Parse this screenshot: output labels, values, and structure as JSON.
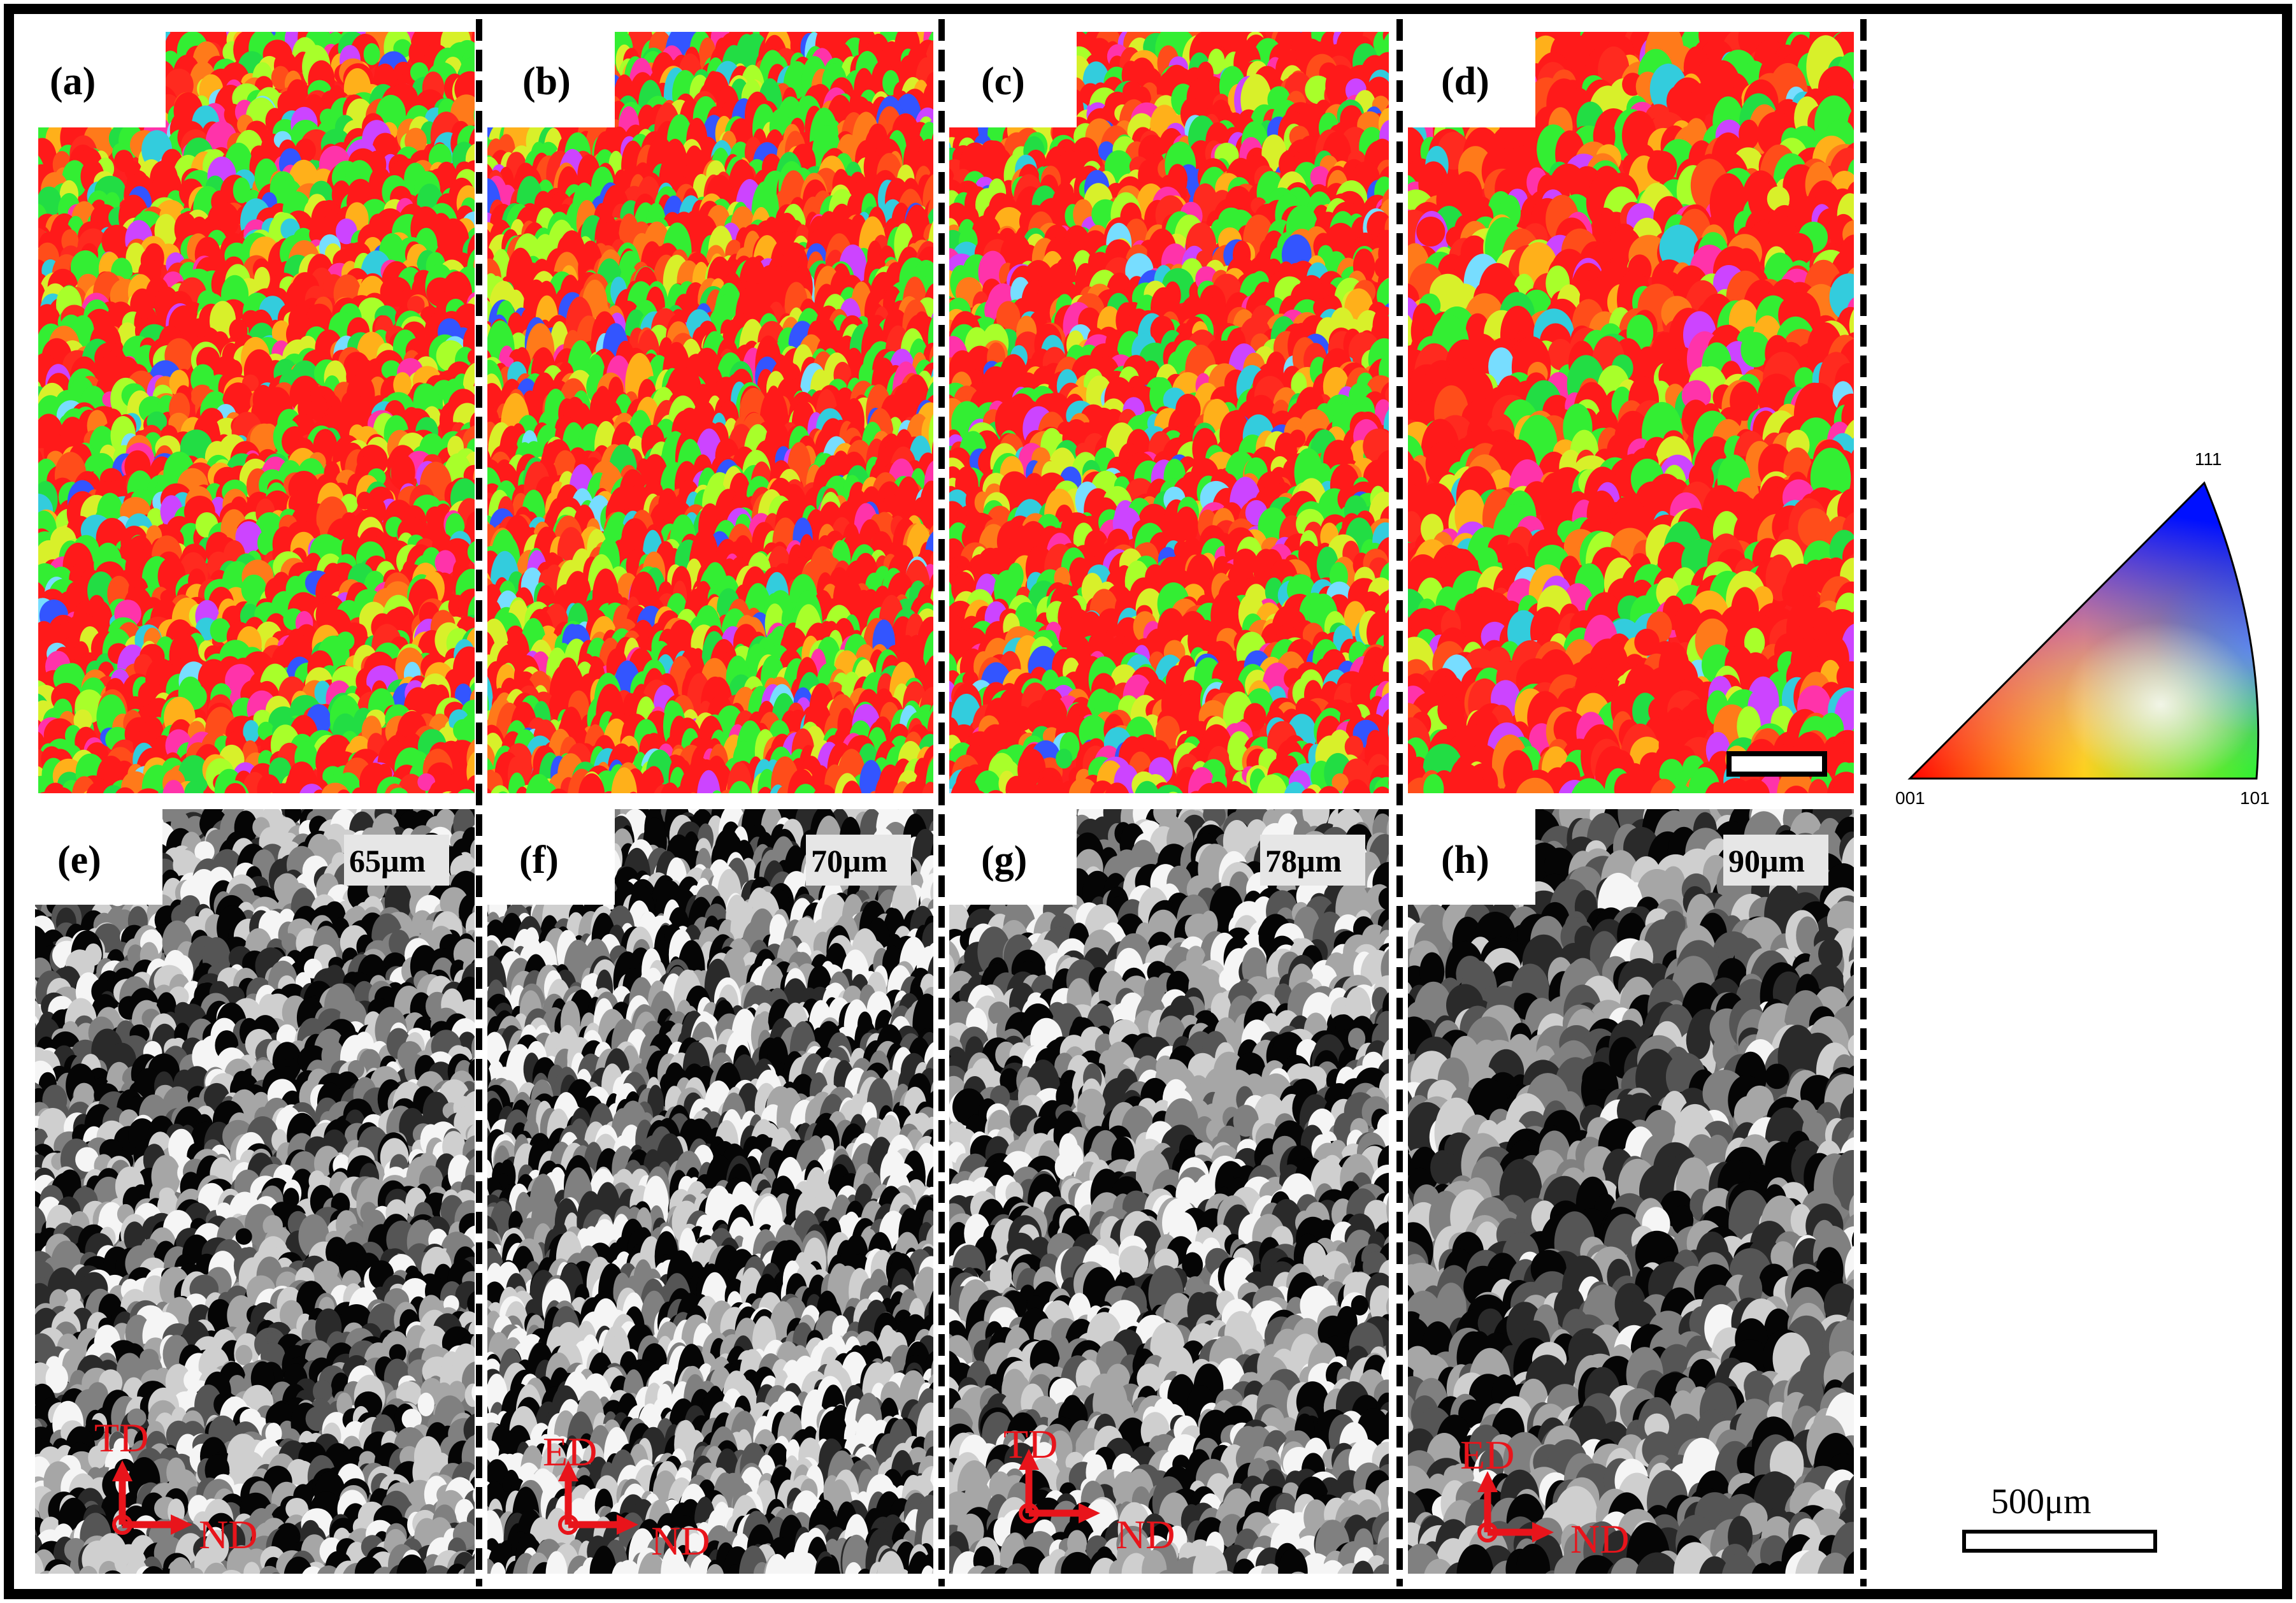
{
  "panels": [
    {
      "id": "a",
      "label": "(a)",
      "kind": "ipf-map"
    },
    {
      "id": "b",
      "label": "(b)",
      "kind": "ipf-map"
    },
    {
      "id": "c",
      "label": "(c)",
      "kind": "ipf-map"
    },
    {
      "id": "d",
      "label": "(d)",
      "kind": "ipf-map"
    },
    {
      "id": "e",
      "label": "(e)",
      "kind": "grayscale-map",
      "grain_size": "65μm",
      "axis_up": "TD",
      "axis_right": "ND"
    },
    {
      "id": "f",
      "label": "(f)",
      "kind": "grayscale-map",
      "grain_size": "70μm",
      "axis_up": "ED",
      "axis_right": "ND"
    },
    {
      "id": "g",
      "label": "(g)",
      "kind": "grayscale-map",
      "grain_size": "78μm",
      "axis_up": "TD",
      "axis_right": "ND"
    },
    {
      "id": "h",
      "label": "(h)",
      "kind": "grayscale-map",
      "grain_size": "90μm",
      "axis_up": "ED",
      "axis_right": "ND"
    }
  ],
  "legend": {
    "corner_111": "111",
    "corner_001": "001",
    "corner_101": "101"
  },
  "scale_bar": {
    "label": "500μm"
  },
  "colors": {
    "frame": "#000000",
    "axis_arrows": "#e8141b",
    "ipf_palette": [
      "#ff1a1a",
      "#ff2a1f",
      "#ff4d1a",
      "#ff7a1a",
      "#ffb01a",
      "#d8f02a",
      "#a8ff2a",
      "#33ee33",
      "#22dd44",
      "#ff33aa",
      "#cc44ff",
      "#33ccdd",
      "#3355ff",
      "#77ddff"
    ],
    "gray_palette": [
      "#050505",
      "#2a2a2a",
      "#555555",
      "#808080",
      "#a6a6a6",
      "#cfcfcf",
      "#f5f5f5"
    ]
  }
}
